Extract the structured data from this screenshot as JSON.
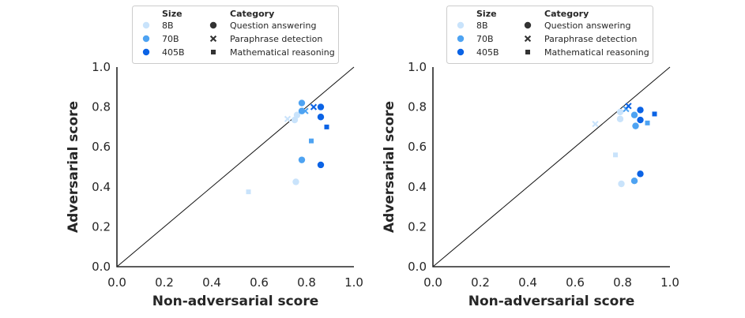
{
  "colors": {
    "8B": "#c9e3fb",
    "70B": "#4ea3f2",
    "405B": "#0b63e5",
    "neutral": "#333333",
    "axis": "#262626"
  },
  "legend": {
    "size_title": "Size",
    "category_title": "Category",
    "sizes": [
      "8B",
      "70B",
      "405B"
    ],
    "categories": [
      "Question answering",
      "Paraphrase detection",
      "Mathematical reasoning"
    ]
  },
  "chart_data": [
    {
      "type": "scatter",
      "title": "",
      "xlabel": "Non-adversarial score",
      "ylabel": "Adversarial score",
      "xlim": [
        0,
        1
      ],
      "ylim": [
        0,
        1
      ],
      "xticks": [
        "0.0",
        "0.2",
        "0.4",
        "0.6",
        "0.8",
        "1.0"
      ],
      "yticks": [
        "0.0",
        "0.2",
        "0.4",
        "0.6",
        "0.8",
        "1.0"
      ],
      "diagonal": true,
      "points": [
        {
          "x": 0.72,
          "y": 0.74,
          "size": "8B",
          "category": "Paraphrase detection"
        },
        {
          "x": 0.75,
          "y": 0.735,
          "size": "8B",
          "category": "Question answering"
        },
        {
          "x": 0.76,
          "y": 0.76,
          "size": "8B",
          "category": "Question answering"
        },
        {
          "x": 0.755,
          "y": 0.425,
          "size": "8B",
          "category": "Question answering"
        },
        {
          "x": 0.555,
          "y": 0.375,
          "size": "8B",
          "category": "Mathematical reasoning"
        },
        {
          "x": 0.78,
          "y": 0.82,
          "size": "70B",
          "category": "Question answering"
        },
        {
          "x": 0.78,
          "y": 0.78,
          "size": "70B",
          "category": "Question answering"
        },
        {
          "x": 0.795,
          "y": 0.78,
          "size": "70B",
          "category": "Paraphrase detection"
        },
        {
          "x": 0.78,
          "y": 0.535,
          "size": "70B",
          "category": "Question answering"
        },
        {
          "x": 0.82,
          "y": 0.63,
          "size": "70B",
          "category": "Mathematical reasoning"
        },
        {
          "x": 0.83,
          "y": 0.8,
          "size": "405B",
          "category": "Paraphrase detection"
        },
        {
          "x": 0.86,
          "y": 0.8,
          "size": "405B",
          "category": "Question answering"
        },
        {
          "x": 0.86,
          "y": 0.75,
          "size": "405B",
          "category": "Question answering"
        },
        {
          "x": 0.885,
          "y": 0.7,
          "size": "405B",
          "category": "Mathematical reasoning"
        },
        {
          "x": 0.86,
          "y": 0.51,
          "size": "405B",
          "category": "Question answering"
        }
      ]
    },
    {
      "type": "scatter",
      "title": "",
      "xlabel": "Non-adversarial score",
      "ylabel": "Adversarial score",
      "xlim": [
        0,
        1
      ],
      "ylim": [
        0,
        1
      ],
      "xticks": [
        "0.0",
        "0.2",
        "0.4",
        "0.6",
        "0.8",
        "1.0"
      ],
      "yticks": [
        "0.0",
        "0.2",
        "0.4",
        "0.6",
        "0.8",
        "1.0"
      ],
      "diagonal": true,
      "points": [
        {
          "x": 0.685,
          "y": 0.715,
          "size": "8B",
          "category": "Paraphrase detection"
        },
        {
          "x": 0.79,
          "y": 0.74,
          "size": "8B",
          "category": "Question answering"
        },
        {
          "x": 0.79,
          "y": 0.775,
          "size": "8B",
          "category": "Question answering"
        },
        {
          "x": 0.795,
          "y": 0.415,
          "size": "8B",
          "category": "Question answering"
        },
        {
          "x": 0.77,
          "y": 0.56,
          "size": "8B",
          "category": "Mathematical reasoning"
        },
        {
          "x": 0.815,
          "y": 0.79,
          "size": "70B",
          "category": "Paraphrase detection"
        },
        {
          "x": 0.85,
          "y": 0.76,
          "size": "70B",
          "category": "Question answering"
        },
        {
          "x": 0.855,
          "y": 0.705,
          "size": "70B",
          "category": "Question answering"
        },
        {
          "x": 0.85,
          "y": 0.43,
          "size": "70B",
          "category": "Question answering"
        },
        {
          "x": 0.905,
          "y": 0.72,
          "size": "70B",
          "category": "Mathematical reasoning"
        },
        {
          "x": 0.825,
          "y": 0.805,
          "size": "405B",
          "category": "Paraphrase detection"
        },
        {
          "x": 0.875,
          "y": 0.785,
          "size": "405B",
          "category": "Question answering"
        },
        {
          "x": 0.875,
          "y": 0.735,
          "size": "405B",
          "category": "Question answering"
        },
        {
          "x": 0.935,
          "y": 0.765,
          "size": "405B",
          "category": "Mathematical reasoning"
        },
        {
          "x": 0.875,
          "y": 0.465,
          "size": "405B",
          "category": "Question answering"
        }
      ]
    }
  ]
}
